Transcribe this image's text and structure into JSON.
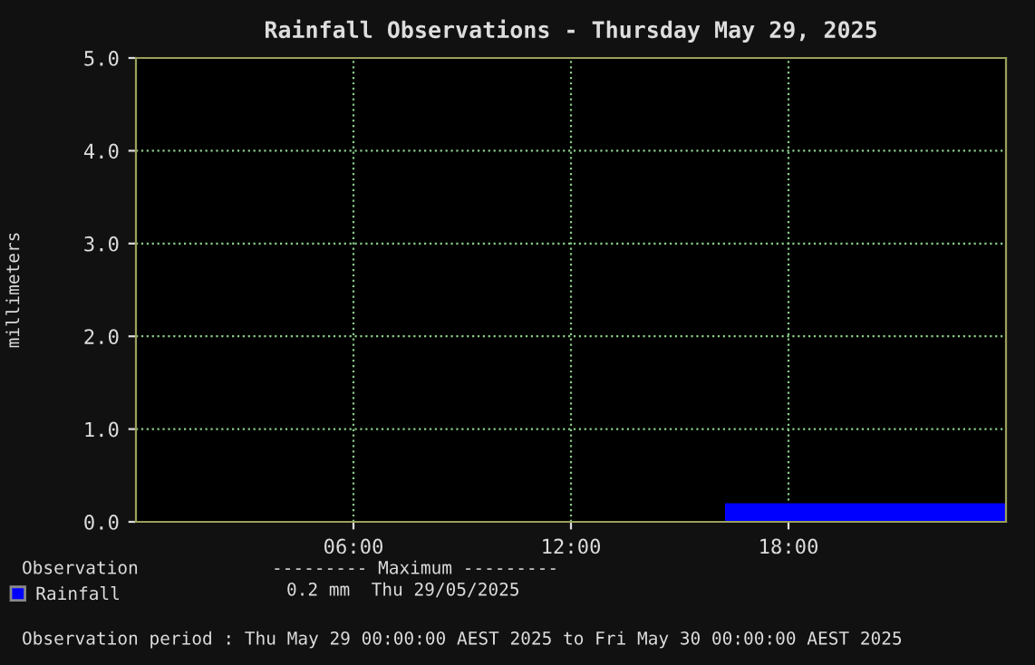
{
  "chart_data": {
    "type": "area",
    "title": "Rainfall Observations - Thursday May 29, 2025",
    "ylabel": "millimeters",
    "series": [
      {
        "name": "Rainfall",
        "color": "#0000ff",
        "x": [
          16.25,
          24
        ],
        "values": [
          0.2,
          0.2
        ]
      }
    ],
    "xlim": [
      0,
      24
    ],
    "xticks": [
      {
        "value": 6,
        "label": "06:00"
      },
      {
        "value": 12,
        "label": "12:00"
      },
      {
        "value": 18,
        "label": "18:00"
      }
    ],
    "ylim": [
      0,
      5
    ],
    "yticks": [
      {
        "value": 0,
        "label": "0.0"
      },
      {
        "value": 1,
        "label": "1.0"
      },
      {
        "value": 2,
        "label": "2.0"
      },
      {
        "value": 3,
        "label": "3.0"
      },
      {
        "value": 4,
        "label": "4.0"
      },
      {
        "value": 5,
        "label": "5.0"
      }
    ],
    "grid": true,
    "legend": "bottom left",
    "annotations": [
      "Observation",
      "--------- Maximum ---------",
      "0.2 mm  Thu 29/05/2025",
      "Observation period : Thu May 29 00:00:00 AEST 2025 to Fri May 30 00:00:00 AEST 2025"
    ]
  }
}
